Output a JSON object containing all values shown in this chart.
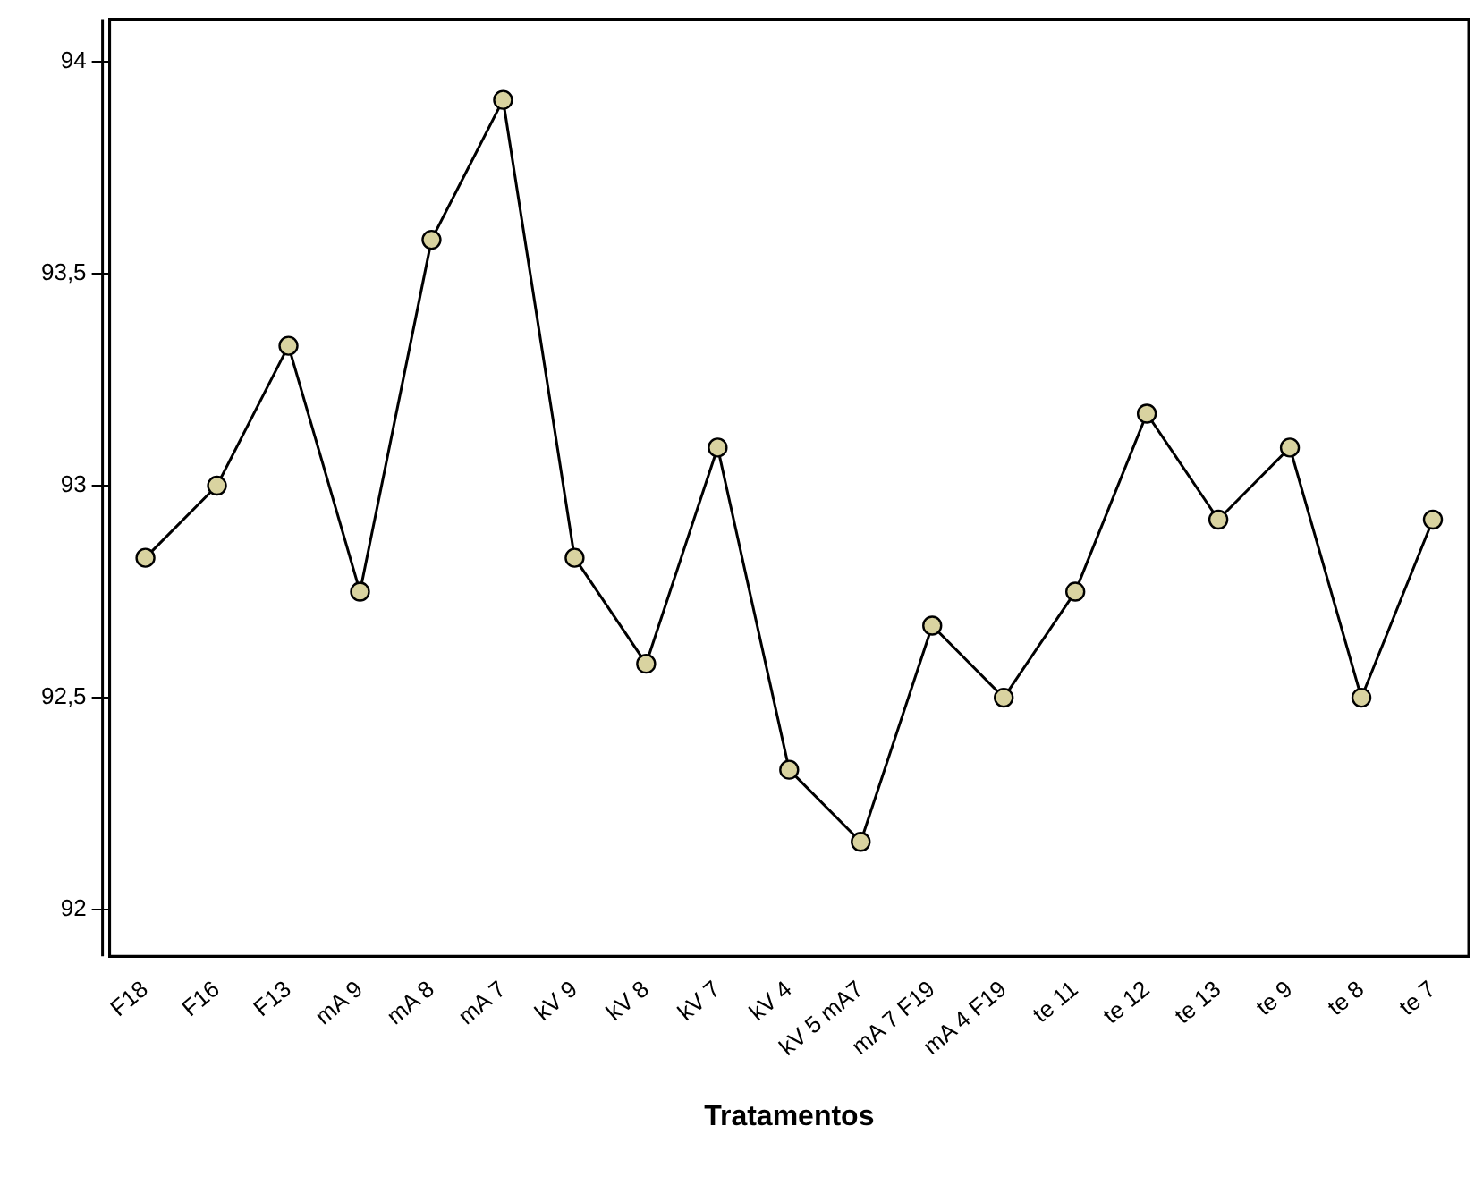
{
  "chart_data": {
    "type": "line",
    "xlabel": "Tratamentos",
    "categories": [
      "F18",
      "F16",
      "F13",
      "mA 9",
      "mA 8",
      "mA 7",
      "kV 9",
      "kV 8",
      "kV 7",
      "kV 4",
      "kV 5 mA7",
      "mA 7 F19",
      "mA 4 F19",
      "te 11",
      "te 12",
      "te 13",
      "te 9",
      "te 8",
      "te 7"
    ],
    "series": [
      {
        "color": "#000000",
        "values": [
          92.83,
          93.0,
          93.33,
          92.75,
          93.58,
          93.91,
          92.83,
          92.58,
          93.09,
          92.33,
          92.16,
          92.67,
          92.5,
          92.75,
          93.17,
          92.92,
          93.09,
          92.5,
          92.92
        ]
      }
    ],
    "ylim": [
      91.89,
      94.1
    ],
    "yticks": [
      92,
      {
        "value": 92.5,
        "label": "92,5"
      },
      93,
      {
        "value": 93.5,
        "label": "93,5"
      },
      94
    ],
    "grid": false,
    "legend": false,
    "marker": "circle",
    "line_style": "solid"
  }
}
